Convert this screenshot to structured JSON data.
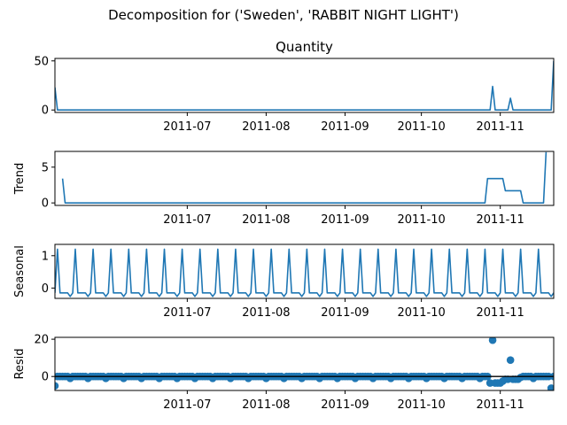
{
  "figure": {
    "suptitle": "Decomposition for ('Sweden', 'RABBIT NIGHT LIGHT')"
  },
  "chart_data": [
    {
      "type": "line",
      "title": "Quantity",
      "ylabel": "",
      "ylim": [
        -2.5,
        52.5
      ],
      "yticks": [
        0,
        50
      ],
      "x_dates": [
        "2011-05-10",
        "2011-05-11",
        "2011-10-28",
        "2011-10-29",
        "2011-10-30",
        "2011-11-04",
        "2011-11-05",
        "2011-11-06",
        "2011-11-21",
        "2011-11-22"
      ],
      "values": [
        23,
        0,
        0,
        24,
        0,
        0,
        12,
        0,
        0,
        50
      ],
      "xlim": [
        "2011-05-10",
        "2011-11-22"
      ],
      "xticks": [
        "2011-07-01",
        "2011-08-01",
        "2011-09-01",
        "2011-10-01",
        "2011-11-01"
      ],
      "xticklabels": [
        "2011-07",
        "2011-08",
        "2011-09",
        "2011-10",
        "2011-11"
      ]
    },
    {
      "type": "line",
      "title": "",
      "ylabel": "Trend",
      "ylim": [
        -0.35,
        7.2
      ],
      "yticks": [
        0,
        5
      ],
      "x_dates": [
        "2011-05-13",
        "2011-05-14",
        "2011-10-26",
        "2011-10-27",
        "2011-11-02",
        "2011-11-03",
        "2011-11-09",
        "2011-11-10",
        "2011-11-18",
        "2011-11-19"
      ],
      "values": [
        3.4,
        0,
        0,
        3.4,
        3.4,
        1.7,
        1.7,
        0,
        0,
        7.1
      ],
      "xlim": [
        "2011-05-10",
        "2011-11-22"
      ],
      "xticks": [
        "2011-07-01",
        "2011-08-01",
        "2011-09-01",
        "2011-10-01",
        "2011-11-01"
      ],
      "xticklabels": [
        "2011-07",
        "2011-08",
        "2011-09",
        "2011-10",
        "2011-11"
      ]
    },
    {
      "type": "line",
      "title": "",
      "ylabel": "Seasonal",
      "ylim": [
        -0.32,
        1.35
      ],
      "yticks": [
        0,
        1
      ],
      "period_days": 7,
      "pattern": [
        -0.15,
        1.2,
        -0.15,
        -0.15,
        -0.15,
        -0.15,
        -0.26
      ],
      "start_date": "2011-05-10",
      "end_date": "2011-11-22",
      "xlim": [
        "2011-05-10",
        "2011-11-22"
      ],
      "xticks": [
        "2011-07-01",
        "2011-08-01",
        "2011-09-01",
        "2011-10-01",
        "2011-11-01"
      ],
      "xticklabels": [
        "2011-07",
        "2011-08",
        "2011-09",
        "2011-10",
        "2011-11"
      ]
    },
    {
      "type": "scatter",
      "title": "",
      "ylabel": "Resid",
      "ylim": [
        -7.5,
        21
      ],
      "yticks": [
        0,
        20
      ],
      "hline": 0,
      "start_date": "2011-05-10",
      "end_date": "2011-11-22",
      "default_value": 0,
      "weekly_dip": {
        "offset_days": 6,
        "value": -1.0
      },
      "points": [
        {
          "x": "2011-05-10",
          "y": -5
        },
        {
          "x": "2011-10-28",
          "y": -3.5
        },
        {
          "x": "2011-10-29",
          "y": 19.5
        },
        {
          "x": "2011-10-30",
          "y": -3.5
        },
        {
          "x": "2011-10-31",
          "y": -3.5
        },
        {
          "x": "2011-11-01",
          "y": -3.5
        },
        {
          "x": "2011-11-02",
          "y": -2.5
        },
        {
          "x": "2011-11-03",
          "y": -1.5
        },
        {
          "x": "2011-11-04",
          "y": -1.5
        },
        {
          "x": "2011-11-05",
          "y": 8.8
        },
        {
          "x": "2011-11-06",
          "y": -1.5
        },
        {
          "x": "2011-11-07",
          "y": -1.5
        },
        {
          "x": "2011-11-08",
          "y": -1.5
        },
        {
          "x": "2011-11-09",
          "y": -0.5
        },
        {
          "x": "2011-11-21",
          "y": -6.3
        }
      ],
      "xlim": [
        "2011-05-10",
        "2011-11-22"
      ],
      "xticks": [
        "2011-07-01",
        "2011-08-01",
        "2011-09-01",
        "2011-10-01",
        "2011-11-01"
      ],
      "xticklabels": [
        "2011-07",
        "2011-08",
        "2011-09",
        "2011-10",
        "2011-11"
      ]
    }
  ],
  "colors": {
    "series": "#1f77b4",
    "axes": "#000000"
  }
}
